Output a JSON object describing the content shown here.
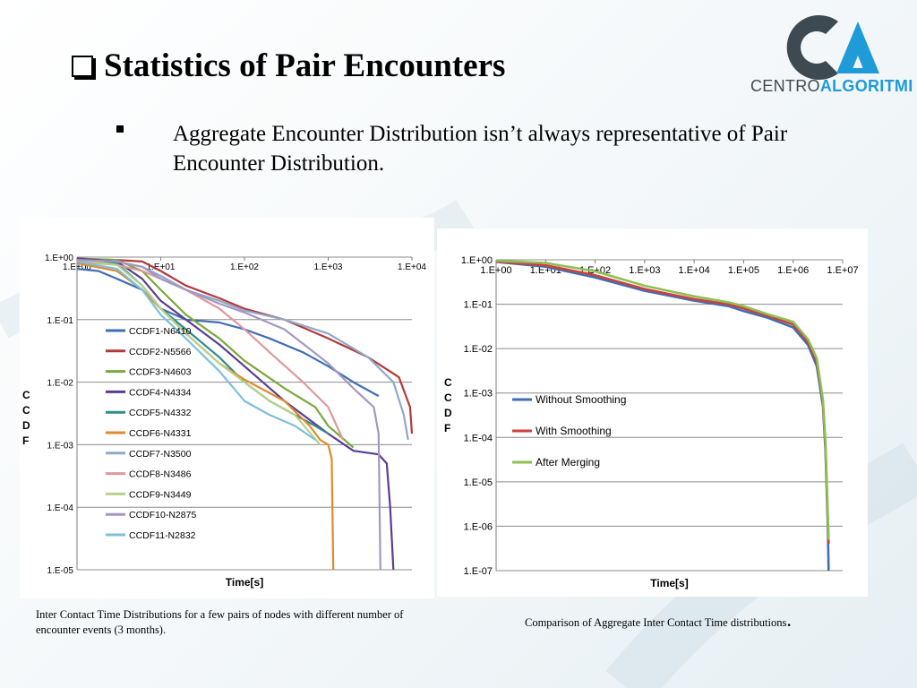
{
  "slide": {
    "title": "Statistics of Pair Encounters",
    "bullet": "Aggregate Encounter Distribution isn’t always representative of Pair Encounter Distribution.",
    "logo": {
      "part1": "CENTRO",
      "part2": "ALGORITMI"
    },
    "caption1": "Inter Contact Time Distributions for a few pairs of nodes with different number of encounter events (3 months).",
    "caption2": "Comparison of Aggregate Inter Contact Time distributions",
    "caption2_end": "."
  },
  "colors": {
    "title": "#000000",
    "logo_dark": "#3d4a52",
    "logo_blue": "#1f9bd7",
    "grid": "#8c8c8c"
  },
  "chart_data": [
    {
      "type": "line",
      "xlabel": "Time[s]",
      "ylabel": "C C D F",
      "x_scale": "log",
      "y_scale": "log",
      "xlim": [
        1,
        10000
      ],
      "ylim": [
        1e-05,
        1
      ],
      "x_ticks": [
        "1.E+00",
        "1.E+01",
        "1.E+02",
        "1.E+03",
        "1.E+04"
      ],
      "y_ticks": [
        "1.E+00",
        "1.E-01",
        "1.E-02",
        "1.E-03",
        "1.E-04",
        "1.E-05"
      ],
      "grid": true,
      "legend_position": "left",
      "series": [
        {
          "name": "CCDF1-N6410",
          "color": "#3e6fb4",
          "x": [
            1,
            1.8,
            3,
            6,
            10,
            20,
            50,
            100,
            200,
            500,
            1000,
            2000,
            4000
          ],
          "y": [
            0.65,
            0.6,
            0.45,
            0.3,
            0.15,
            0.1,
            0.09,
            0.07,
            0.05,
            0.03,
            0.018,
            0.01,
            0.006
          ]
        },
        {
          "name": "CCDF2-N5566",
          "color": "#b23a38",
          "x": [
            1,
            3,
            6,
            10,
            20,
            50,
            100,
            300,
            1000,
            3000,
            7000,
            9500,
            10000
          ],
          "y": [
            0.95,
            0.9,
            0.85,
            0.6,
            0.35,
            0.22,
            0.15,
            0.1,
            0.05,
            0.025,
            0.012,
            0.004,
            0.0015
          ]
        },
        {
          "name": "CCDF3-N4603",
          "color": "#7aa83d",
          "x": [
            1,
            3,
            6,
            10,
            20,
            50,
            100,
            300,
            700,
            1000,
            2000
          ],
          "y": [
            0.95,
            0.9,
            0.6,
            0.3,
            0.12,
            0.05,
            0.022,
            0.008,
            0.004,
            0.002,
            0.0009
          ]
        },
        {
          "name": "CCDF4-N4334",
          "color": "#5b3d8f",
          "x": [
            1,
            3,
            6,
            10,
            20,
            50,
            100,
            300,
            1000,
            2000,
            4000,
            5000,
            5500,
            6000
          ],
          "y": [
            0.95,
            0.85,
            0.45,
            0.2,
            0.1,
            0.04,
            0.018,
            0.005,
            0.0015,
            0.0008,
            0.0007,
            0.0005,
            0.0001,
            1e-05
          ]
        },
        {
          "name": "CCDF5-N4332",
          "color": "#2f8b8e",
          "x": [
            1,
            3,
            6,
            10,
            20,
            50,
            100,
            200,
            400,
            700,
            1000
          ],
          "y": [
            0.9,
            0.8,
            0.35,
            0.15,
            0.07,
            0.025,
            0.01,
            0.005,
            0.003,
            0.002,
            0.0015
          ]
        },
        {
          "name": "CCDF6-N4331",
          "color": "#e08a2c",
          "x": [
            1,
            3,
            6,
            10,
            20,
            50,
            100,
            300,
            600,
            800,
            1000,
            1100,
            1150
          ],
          "y": [
            0.8,
            0.6,
            0.3,
            0.15,
            0.06,
            0.02,
            0.011,
            0.005,
            0.002,
            0.0012,
            0.001,
            0.0006,
            1e-05
          ]
        },
        {
          "name": "CCDF7-N3500",
          "color": "#8ea8cb",
          "x": [
            1,
            3,
            6,
            10,
            20,
            50,
            100,
            300,
            1000,
            3000,
            6000,
            8000,
            9000
          ],
          "y": [
            0.9,
            0.85,
            0.7,
            0.5,
            0.3,
            0.2,
            0.14,
            0.1,
            0.06,
            0.025,
            0.01,
            0.003,
            0.0012
          ]
        },
        {
          "name": "CCDF8-N3486",
          "color": "#dd9a9b",
          "x": [
            1,
            3,
            6,
            10,
            20,
            50,
            100,
            200,
            500,
            1000,
            1500
          ],
          "y": [
            0.85,
            0.75,
            0.6,
            0.45,
            0.3,
            0.15,
            0.07,
            0.03,
            0.01,
            0.004,
            0.0012
          ]
        },
        {
          "name": "CCDF9-N3449",
          "color": "#b6d18c",
          "x": [
            1,
            3,
            6,
            10,
            20,
            50,
            100,
            200,
            400,
            800
          ],
          "y": [
            0.9,
            0.75,
            0.35,
            0.15,
            0.06,
            0.02,
            0.01,
            0.005,
            0.003,
            0.001
          ]
        },
        {
          "name": "CCDF10-N2875",
          "color": "#a497c2",
          "x": [
            1,
            3,
            6,
            10,
            20,
            50,
            100,
            300,
            1000,
            2000,
            3500,
            4000,
            4200
          ],
          "y": [
            0.9,
            0.85,
            0.7,
            0.45,
            0.3,
            0.18,
            0.13,
            0.07,
            0.02,
            0.008,
            0.004,
            0.0015,
            1e-05
          ]
        },
        {
          "name": "CCDF11-N2832",
          "color": "#7dbfdc",
          "x": [
            1,
            3,
            6,
            10,
            20,
            50,
            100,
            200,
            400,
            700
          ],
          "y": [
            0.85,
            0.65,
            0.3,
            0.12,
            0.05,
            0.015,
            0.005,
            0.003,
            0.002,
            0.0012
          ]
        }
      ]
    },
    {
      "type": "line",
      "xlabel": "Time[s]",
      "ylabel": "C C D F",
      "x_scale": "log",
      "y_scale": "log",
      "xlim": [
        1,
        10000000
      ],
      "ylim": [
        1e-07,
        1
      ],
      "x_ticks": [
        "1.E+00",
        "1.E+01",
        "1.E+02",
        "1.E+03",
        "1.E+04",
        "1.E+05",
        "1.E+06",
        "1.E+07"
      ],
      "y_ticks": [
        "1.E+00",
        "1.E-01",
        "1.E-02",
        "1.E-03",
        "1.E-04",
        "1.E-05",
        "1.E-06",
        "1.E-07"
      ],
      "grid": true,
      "legend_position": "left",
      "series": [
        {
          "name": "Without Smoothing",
          "color": "#3e6fb4",
          "x": [
            1,
            10,
            100,
            1000,
            10000,
            50000,
            100000,
            300000,
            1000000,
            2000000,
            3000000,
            4000000,
            4500000,
            5000000,
            5200000
          ],
          "y": [
            0.9,
            0.7,
            0.4,
            0.2,
            0.12,
            0.09,
            0.07,
            0.05,
            0.03,
            0.012,
            0.004,
            0.0005,
            5e-05,
            1e-06,
            1e-07
          ]
        },
        {
          "name": "With Smoothing",
          "color": "#cf3f3c",
          "x": [
            1,
            10,
            100,
            1000,
            10000,
            50000,
            100000,
            300000,
            1000000,
            2000000,
            3000000,
            4000000,
            4500000,
            5000000,
            5200000
          ],
          "y": [
            0.92,
            0.75,
            0.45,
            0.22,
            0.13,
            0.1,
            0.08,
            0.055,
            0.035,
            0.014,
            0.005,
            0.0006,
            6e-05,
            1.5e-06,
            4e-07
          ]
        },
        {
          "name": "After Merging",
          "color": "#8cc152",
          "x": [
            1,
            10,
            100,
            1000,
            10000,
            50000,
            100000,
            300000,
            1000000,
            2000000,
            3000000,
            4000000,
            4500000,
            5000000,
            5200000
          ],
          "y": [
            0.95,
            0.85,
            0.55,
            0.26,
            0.15,
            0.11,
            0.09,
            0.06,
            0.04,
            0.016,
            0.006,
            0.0007,
            8e-05,
            2e-06,
            5e-07
          ]
        }
      ]
    }
  ]
}
